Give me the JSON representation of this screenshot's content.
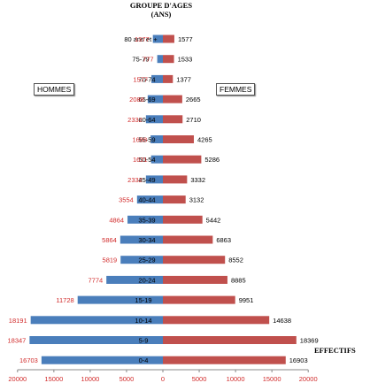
{
  "chart_data": {
    "type": "bar",
    "title_line1": "GROUPE D'AGES",
    "title_line2": "(ANS)",
    "xlabel": "EFFECTIFS",
    "categories": [
      "80 ans et +",
      "75-79",
      "70-74",
      "65-69",
      "60-64",
      "55-59",
      "50-54",
      "45-49",
      "40-44",
      "35-39",
      "30-34",
      "25-29",
      "20-24",
      "15-19",
      "10-14",
      "5-9",
      "0-4"
    ],
    "series": [
      {
        "name": "HOMMES",
        "color": "#4a7ebb",
        "values": [
          1377,
          777,
          1577,
          2088,
          2332,
          1688,
          1621,
          2332,
          3554,
          4864,
          5864,
          5819,
          7774,
          11728,
          18191,
          18347,
          16703
        ]
      },
      {
        "name": "FEMMES",
        "color": "#c0504d",
        "values": [
          1577,
          1533,
          1377,
          2665,
          2710,
          4265,
          5286,
          3332,
          3132,
          5442,
          6863,
          8552,
          8885,
          9951,
          14638,
          18369,
          16903
        ]
      }
    ],
    "xticks": [
      "20000",
      "15000",
      "10000",
      "5000",
      "0",
      "5000",
      "10000",
      "15000",
      "20000"
    ],
    "xlim": [
      -20000,
      20000
    ],
    "grid": false,
    "legend": "boxes near top, HOMMES left and FEMMES right"
  }
}
